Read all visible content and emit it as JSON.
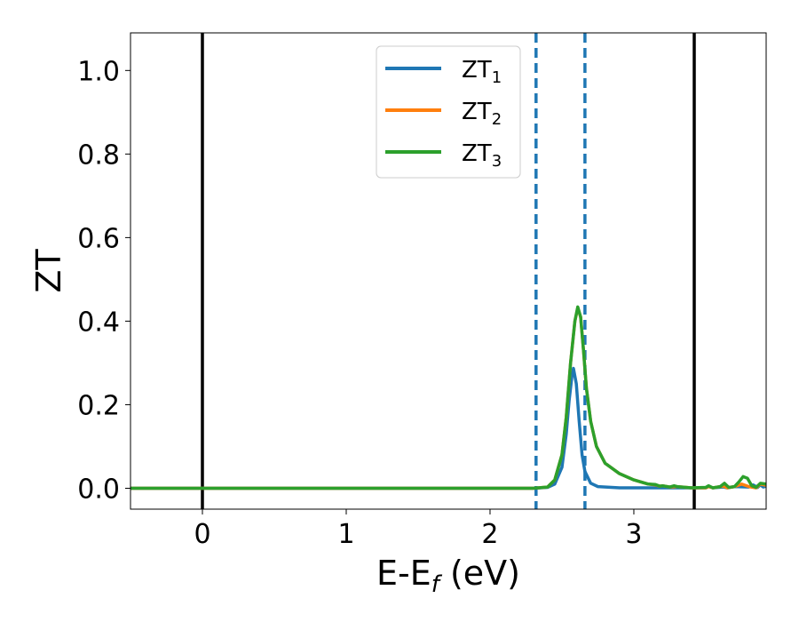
{
  "chart_data": {
    "type": "line",
    "xlabel": "E-E",
    "xlabel_sub": "f",
    "xlabel_unit": " (eV)",
    "ylabel": "ZT",
    "xlim": [
      -0.5,
      3.92
    ],
    "ylim": [
      -0.05,
      1.09
    ],
    "x_ticks": [
      0,
      1,
      2,
      3
    ],
    "x_tick_labels": [
      "0",
      "1",
      "2",
      "3"
    ],
    "y_ticks": [
      0.0,
      0.2,
      0.4,
      0.6,
      0.8,
      1.0
    ],
    "y_tick_labels": [
      "0.0",
      "0.2",
      "0.4",
      "0.6",
      "0.8",
      "1.0"
    ],
    "grid": false,
    "legend_position": "top-center",
    "vertical_lines": [
      {
        "x": 0.0,
        "style": "solid",
        "color": "#000000"
      },
      {
        "x": 3.42,
        "style": "solid",
        "color": "#000000"
      },
      {
        "x": 2.32,
        "style": "dashed",
        "color": "#1f77b4"
      },
      {
        "x": 2.66,
        "style": "dashed",
        "color": "#1f77b4"
      }
    ],
    "series": [
      {
        "name": "ZT",
        "name_sub": "1",
        "color": "#1f77b4",
        "points": [
          [
            -0.5,
            0.0
          ],
          [
            2.3,
            0.0
          ],
          [
            2.4,
            0.002
          ],
          [
            2.45,
            0.01
          ],
          [
            2.5,
            0.05
          ],
          [
            2.53,
            0.13
          ],
          [
            2.55,
            0.21
          ],
          [
            2.57,
            0.27
          ],
          [
            2.58,
            0.287
          ],
          [
            2.6,
            0.25
          ],
          [
            2.62,
            0.16
          ],
          [
            2.64,
            0.08
          ],
          [
            2.66,
            0.04
          ],
          [
            2.7,
            0.012
          ],
          [
            2.75,
            0.004
          ],
          [
            2.9,
            0.001
          ],
          [
            3.5,
            0.001
          ],
          [
            3.52,
            0.004
          ],
          [
            3.55,
            0.001
          ],
          [
            3.62,
            0.003
          ],
          [
            3.65,
            0.001
          ],
          [
            3.7,
            0.004
          ],
          [
            3.8,
            0.003
          ],
          [
            3.83,
            0.008
          ],
          [
            3.86,
            0.002
          ],
          [
            3.88,
            0.008
          ],
          [
            3.9,
            0.003
          ],
          [
            3.92,
            0.005
          ]
        ]
      },
      {
        "name": "ZT",
        "name_sub": "2",
        "color": "#ff7f0e",
        "points": [
          [
            -0.5,
            0.0
          ],
          [
            2.3,
            0.0
          ],
          [
            2.4,
            0.003
          ],
          [
            2.45,
            0.02
          ],
          [
            2.5,
            0.08
          ],
          [
            2.53,
            0.17
          ],
          [
            2.56,
            0.3
          ],
          [
            2.59,
            0.4
          ],
          [
            2.61,
            0.432
          ],
          [
            2.63,
            0.41
          ],
          [
            2.65,
            0.33
          ],
          [
            2.67,
            0.24
          ],
          [
            2.7,
            0.16
          ],
          [
            2.74,
            0.1
          ],
          [
            2.8,
            0.06
          ],
          [
            2.9,
            0.035
          ],
          [
            3.0,
            0.02
          ],
          [
            3.1,
            0.01
          ],
          [
            3.15,
            0.008
          ],
          [
            3.18,
            0.005
          ],
          [
            3.2,
            0.006
          ],
          [
            3.25,
            0.003
          ],
          [
            3.3,
            0.004
          ],
          [
            3.4,
            0.001
          ],
          [
            3.5,
            0.001
          ],
          [
            3.52,
            0.004
          ],
          [
            3.55,
            0.001
          ],
          [
            3.62,
            0.005
          ],
          [
            3.65,
            0.001
          ],
          [
            3.7,
            0.004
          ],
          [
            3.75,
            0.01
          ],
          [
            3.8,
            0.004
          ],
          [
            3.85,
            0.001
          ],
          [
            3.88,
            0.01
          ],
          [
            3.92,
            0.007
          ]
        ]
      },
      {
        "name": "ZT",
        "name_sub": "3",
        "color": "#2ca02c",
        "points": [
          [
            -0.5,
            0.0
          ],
          [
            2.3,
            0.0
          ],
          [
            2.4,
            0.003
          ],
          [
            2.45,
            0.02
          ],
          [
            2.5,
            0.08
          ],
          [
            2.53,
            0.17
          ],
          [
            2.56,
            0.3
          ],
          [
            2.59,
            0.4
          ],
          [
            2.61,
            0.434
          ],
          [
            2.63,
            0.41
          ],
          [
            2.65,
            0.33
          ],
          [
            2.67,
            0.24
          ],
          [
            2.7,
            0.16
          ],
          [
            2.74,
            0.1
          ],
          [
            2.8,
            0.06
          ],
          [
            2.9,
            0.035
          ],
          [
            3.0,
            0.02
          ],
          [
            3.1,
            0.01
          ],
          [
            3.15,
            0.009
          ],
          [
            3.18,
            0.005
          ],
          [
            3.2,
            0.006
          ],
          [
            3.25,
            0.003
          ],
          [
            3.28,
            0.006
          ],
          [
            3.3,
            0.004
          ],
          [
            3.4,
            0.001
          ],
          [
            3.5,
            0.002
          ],
          [
            3.52,
            0.006
          ],
          [
            3.55,
            0.001
          ],
          [
            3.6,
            0.004
          ],
          [
            3.63,
            0.012
          ],
          [
            3.66,
            0.002
          ],
          [
            3.7,
            0.004
          ],
          [
            3.73,
            0.015
          ],
          [
            3.76,
            0.028
          ],
          [
            3.79,
            0.024
          ],
          [
            3.82,
            0.006
          ],
          [
            3.85,
            0.002
          ],
          [
            3.88,
            0.012
          ],
          [
            3.92,
            0.01
          ]
        ]
      }
    ]
  }
}
